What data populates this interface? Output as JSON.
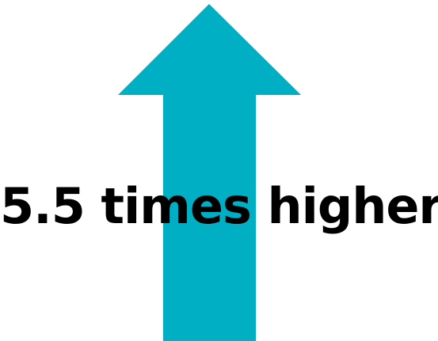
{
  "graphic": {
    "arrow_color": "#00AFC3",
    "arrow_direction": "up",
    "icon": "up-arrow-icon"
  },
  "caption": {
    "text": "5.5 times higher",
    "color": "#000000"
  }
}
